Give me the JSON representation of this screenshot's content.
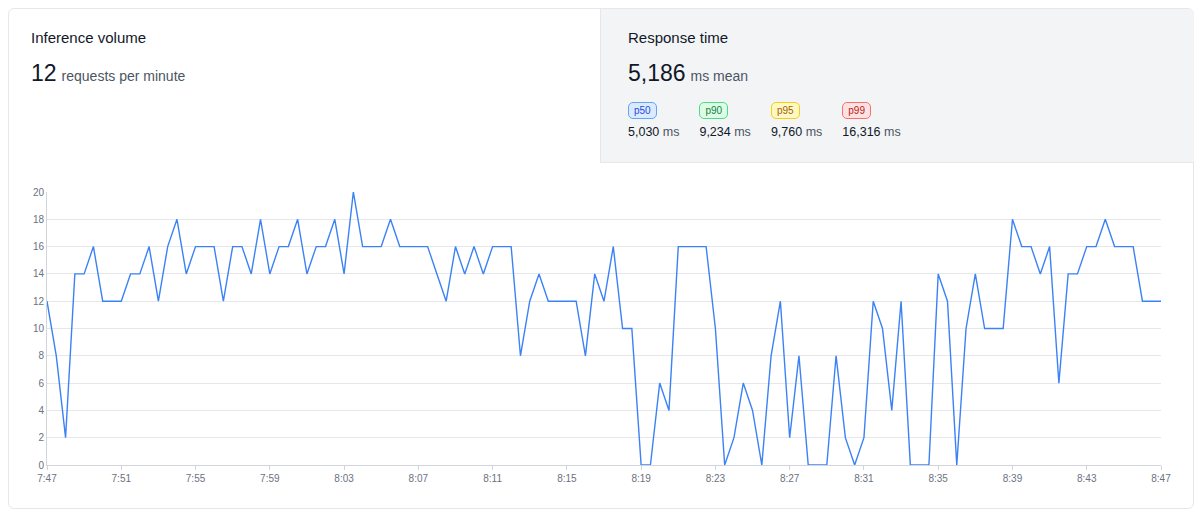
{
  "panels": {
    "volume": {
      "title": "Inference volume",
      "value": "12",
      "unit": "requests per minute"
    },
    "response": {
      "title": "Response time",
      "value": "5,186",
      "unit": "ms mean",
      "percentiles": [
        {
          "label": "p50",
          "value": "5,030",
          "unit": "ms"
        },
        {
          "label": "p90",
          "value": "9,234",
          "unit": "ms"
        },
        {
          "label": "p95",
          "value": "9,760",
          "unit": "ms"
        },
        {
          "label": "p99",
          "value": "16,316",
          "unit": "ms"
        }
      ]
    }
  },
  "chart_data": {
    "type": "line",
    "categories": [
      "7:47",
      null,
      null,
      null,
      null,
      null,
      null,
      null,
      "7:51",
      null,
      null,
      null,
      null,
      null,
      null,
      null,
      "7:55",
      null,
      null,
      null,
      null,
      null,
      null,
      null,
      "7:59",
      null,
      null,
      null,
      null,
      null,
      null,
      null,
      "8:03",
      null,
      null,
      null,
      null,
      null,
      null,
      null,
      "8:07",
      null,
      null,
      null,
      null,
      null,
      null,
      null,
      "8:11",
      null,
      null,
      null,
      null,
      null,
      null,
      null,
      "8:15",
      null,
      null,
      null,
      null,
      null,
      null,
      null,
      "8:19",
      null,
      null,
      null,
      null,
      null,
      null,
      null,
      "8:23",
      null,
      null,
      null,
      null,
      null,
      null,
      null,
      "8:27",
      null,
      null,
      null,
      null,
      null,
      null,
      null,
      "8:31",
      null,
      null,
      null,
      null,
      null,
      null,
      null,
      "8:35",
      null,
      null,
      null,
      null,
      null,
      null,
      null,
      "8:39",
      null,
      null,
      null,
      null,
      null,
      null,
      null,
      "8:43",
      null,
      null,
      null,
      null,
      null,
      null,
      null,
      "8:47"
    ],
    "values": [
      12,
      8,
      2,
      14,
      14,
      16,
      12,
      12,
      12,
      14,
      14,
      16,
      12,
      16,
      18,
      14,
      16,
      16,
      16,
      12,
      16,
      16,
      14,
      18,
      14,
      16,
      16,
      18,
      14,
      16,
      16,
      18,
      14,
      20,
      16,
      16,
      16,
      18,
      16,
      16,
      16,
      16,
      14,
      12,
      16,
      14,
      16,
      14,
      16,
      16,
      16,
      8,
      12,
      14,
      12,
      12,
      12,
      12,
      8,
      14,
      12,
      16,
      10,
      10,
      0,
      0,
      6,
      4,
      16,
      16,
      16,
      16,
      10,
      0,
      2,
      6,
      4,
      0,
      8,
      12,
      2,
      8,
      0,
      0,
      0,
      8,
      2,
      0,
      2,
      12,
      10,
      4,
      12,
      0,
      0,
      0,
      14,
      12,
      0,
      10,
      14,
      10,
      10,
      10,
      18,
      16,
      16,
      14,
      16,
      6,
      14,
      14,
      16,
      16,
      18,
      16,
      16,
      16,
      12,
      12,
      12
    ],
    "color": "#3b82f6",
    "ylim": [
      0,
      20
    ],
    "yticks": [
      0,
      2,
      4,
      6,
      8,
      10,
      12,
      14,
      16,
      18,
      20
    ],
    "grid": true
  }
}
